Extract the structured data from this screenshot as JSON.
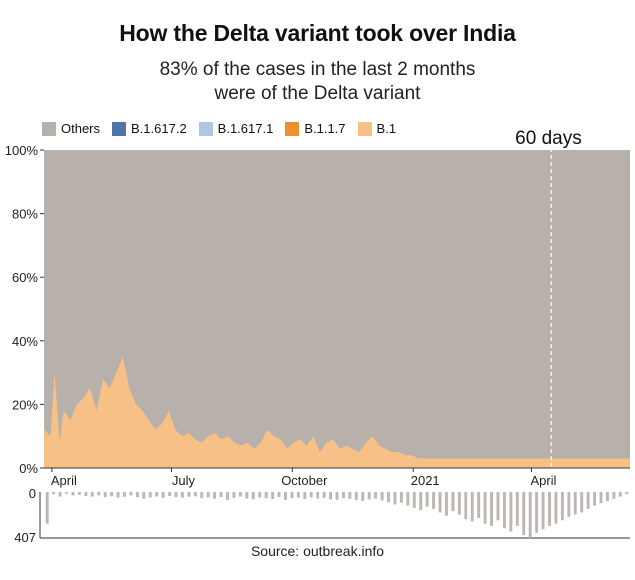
{
  "title": "How the Delta variant took over India",
  "subtitle_line1": "83% of the cases in the last 2 months",
  "subtitle_line2": "were of the Delta variant",
  "source": "Source: outbreak.info",
  "annotation": "60 days",
  "colors": {
    "Others": "#b8b0ab",
    "B.1.617.2": "#4f76a6",
    "B.1.617.1": "#adc8e4",
    "B.1.1.7": "#ee9030",
    "B.1": "#f7c087",
    "count_bars": "#bdb6b1"
  },
  "chart_data": {
    "type": "area",
    "stacked": true,
    "normalized": true,
    "legend_position": "top-left",
    "legend": [
      "Others",
      "B.1.617.2",
      "B.1.617.1",
      "B.1.1.7",
      "B.1"
    ],
    "x_tick_labels": [
      "April",
      "July",
      "October",
      "2021",
      "April"
    ],
    "x_tick_days": [
      6,
      97,
      189,
      281,
      371
    ],
    "x_range_days": [
      0,
      446
    ],
    "y_tick_labels": [
      "0%",
      "20%",
      "40%",
      "60%",
      "80%",
      "100%"
    ],
    "ylim": [
      0,
      100
    ],
    "marker_day": 386,
    "x": [
      0,
      5,
      8,
      12,
      15,
      20,
      25,
      30,
      35,
      40,
      45,
      50,
      55,
      60,
      65,
      70,
      75,
      80,
      85,
      90,
      95,
      100,
      105,
      110,
      115,
      120,
      125,
      130,
      135,
      140,
      145,
      150,
      155,
      160,
      165,
      170,
      175,
      180,
      185,
      190,
      195,
      200,
      205,
      210,
      215,
      220,
      225,
      230,
      235,
      240,
      245,
      250,
      255,
      260,
      265,
      270,
      275,
      280,
      285,
      290,
      295,
      300,
      305,
      310,
      315,
      320,
      325,
      330,
      335,
      340,
      345,
      350,
      355,
      360,
      365,
      370,
      375,
      380,
      385,
      390,
      395,
      400,
      405,
      410,
      415,
      420,
      425,
      430,
      435,
      440,
      446
    ],
    "series": [
      {
        "name": "B.1.617.2",
        "values": [
          0,
          0,
          0,
          0,
          0,
          0,
          0,
          0,
          0,
          0,
          0,
          0,
          0,
          0,
          0,
          0,
          0,
          0,
          0,
          0,
          0,
          0,
          0,
          0,
          0,
          0,
          0,
          0,
          0,
          0,
          0,
          0,
          0,
          0,
          0,
          0,
          0,
          0,
          0,
          0,
          0,
          0,
          0,
          0,
          0,
          0,
          0,
          0,
          0,
          0,
          0,
          0,
          0,
          0,
          0,
          0,
          0,
          0,
          0,
          0,
          0,
          0,
          0,
          0,
          0,
          0,
          0,
          0,
          0,
          0,
          0,
          0,
          0,
          0,
          0,
          0,
          0,
          0,
          0,
          0,
          0,
          0,
          0,
          0,
          0,
          0,
          0,
          0,
          0,
          0,
          0
        ]
      },
      {
        "name": "B.1.617.1",
        "values": [
          0,
          0,
          0,
          0,
          0,
          0,
          0,
          0,
          0,
          0,
          0,
          0,
          0,
          0,
          0,
          0,
          0,
          0,
          0,
          0,
          0,
          0,
          0,
          0,
          0,
          0,
          0,
          0,
          0,
          0,
          0,
          0,
          0,
          0,
          0,
          0,
          0,
          0,
          0,
          0,
          0,
          0,
          0,
          0,
          0,
          0,
          0,
          0,
          0,
          0,
          0,
          0,
          0,
          0,
          0,
          0,
          0,
          0,
          0,
          0,
          0,
          0,
          0,
          0,
          0,
          0,
          0,
          0,
          0,
          0,
          0,
          0,
          0,
          0,
          0,
          0,
          0,
          0,
          0,
          0,
          0,
          0,
          0,
          0,
          0,
          0,
          0,
          0,
          0,
          0,
          0
        ]
      },
      {
        "name": "B.1.1.7",
        "values": [
          0,
          0,
          0,
          0,
          0,
          0,
          0,
          0,
          0,
          0,
          0,
          0,
          0,
          0,
          0,
          0,
          0,
          0,
          0,
          0,
          0,
          0,
          0,
          0,
          0,
          0,
          0,
          0,
          0,
          0,
          0,
          0,
          0,
          0,
          0,
          0,
          0,
          0,
          0,
          0,
          0,
          0,
          0,
          0,
          0,
          0,
          0,
          0,
          0,
          0,
          0,
          0,
          0,
          0,
          0,
          0,
          0,
          0,
          0,
          0,
          0,
          0,
          0,
          0,
          0,
          0,
          0,
          0,
          0,
          0,
          0,
          0,
          0,
          0,
          0,
          0,
          0,
          0,
          0,
          0,
          0,
          0,
          0,
          0,
          0,
          0,
          0,
          0,
          0,
          0,
          0
        ]
      },
      {
        "name": "B.1",
        "values": [
          12,
          10,
          30,
          8,
          18,
          15,
          20,
          22,
          25,
          18,
          28,
          25,
          30,
          35,
          25,
          20,
          18,
          15,
          12,
          14,
          18,
          12,
          10,
          11,
          9,
          8,
          10,
          11,
          9,
          10,
          8,
          7,
          8,
          6,
          8,
          12,
          10,
          9,
          6,
          8,
          9,
          7,
          10,
          5,
          8,
          9,
          6,
          7,
          6,
          5,
          8,
          10,
          7,
          6,
          5,
          5,
          4,
          4,
          3,
          3,
          3,
          3,
          3,
          3,
          3,
          3,
          3,
          3,
          3,
          3,
          3,
          3,
          3,
          3,
          3,
          3,
          3,
          3,
          3,
          3,
          3,
          3,
          3,
          3,
          3,
          3,
          3,
          3,
          3,
          3,
          3
        ]
      }
    ]
  },
  "count_chart": {
    "y_tick_labels": [
      "0",
      "407"
    ],
    "ylim": [
      0,
      407
    ],
    "values": [
      280,
      20,
      40,
      15,
      30,
      25,
      35,
      40,
      30,
      45,
      38,
      50,
      42,
      30,
      45,
      60,
      48,
      40,
      52,
      35,
      45,
      50,
      42,
      38,
      55,
      48,
      60,
      45,
      70,
      52,
      40,
      58,
      65,
      48,
      55,
      62,
      45,
      70,
      55,
      50,
      62,
      48,
      58,
      52,
      66,
      70,
      55,
      60,
      72,
      80,
      65,
      58,
      75,
      90,
      110,
      95,
      120,
      140,
      160,
      130,
      150,
      180,
      210,
      170,
      200,
      240,
      260,
      230,
      280,
      300,
      250,
      320,
      350,
      300,
      380,
      407,
      360,
      330,
      300,
      280,
      250,
      220,
      200,
      180,
      150,
      120,
      100,
      80,
      60,
      40,
      20
    ]
  }
}
